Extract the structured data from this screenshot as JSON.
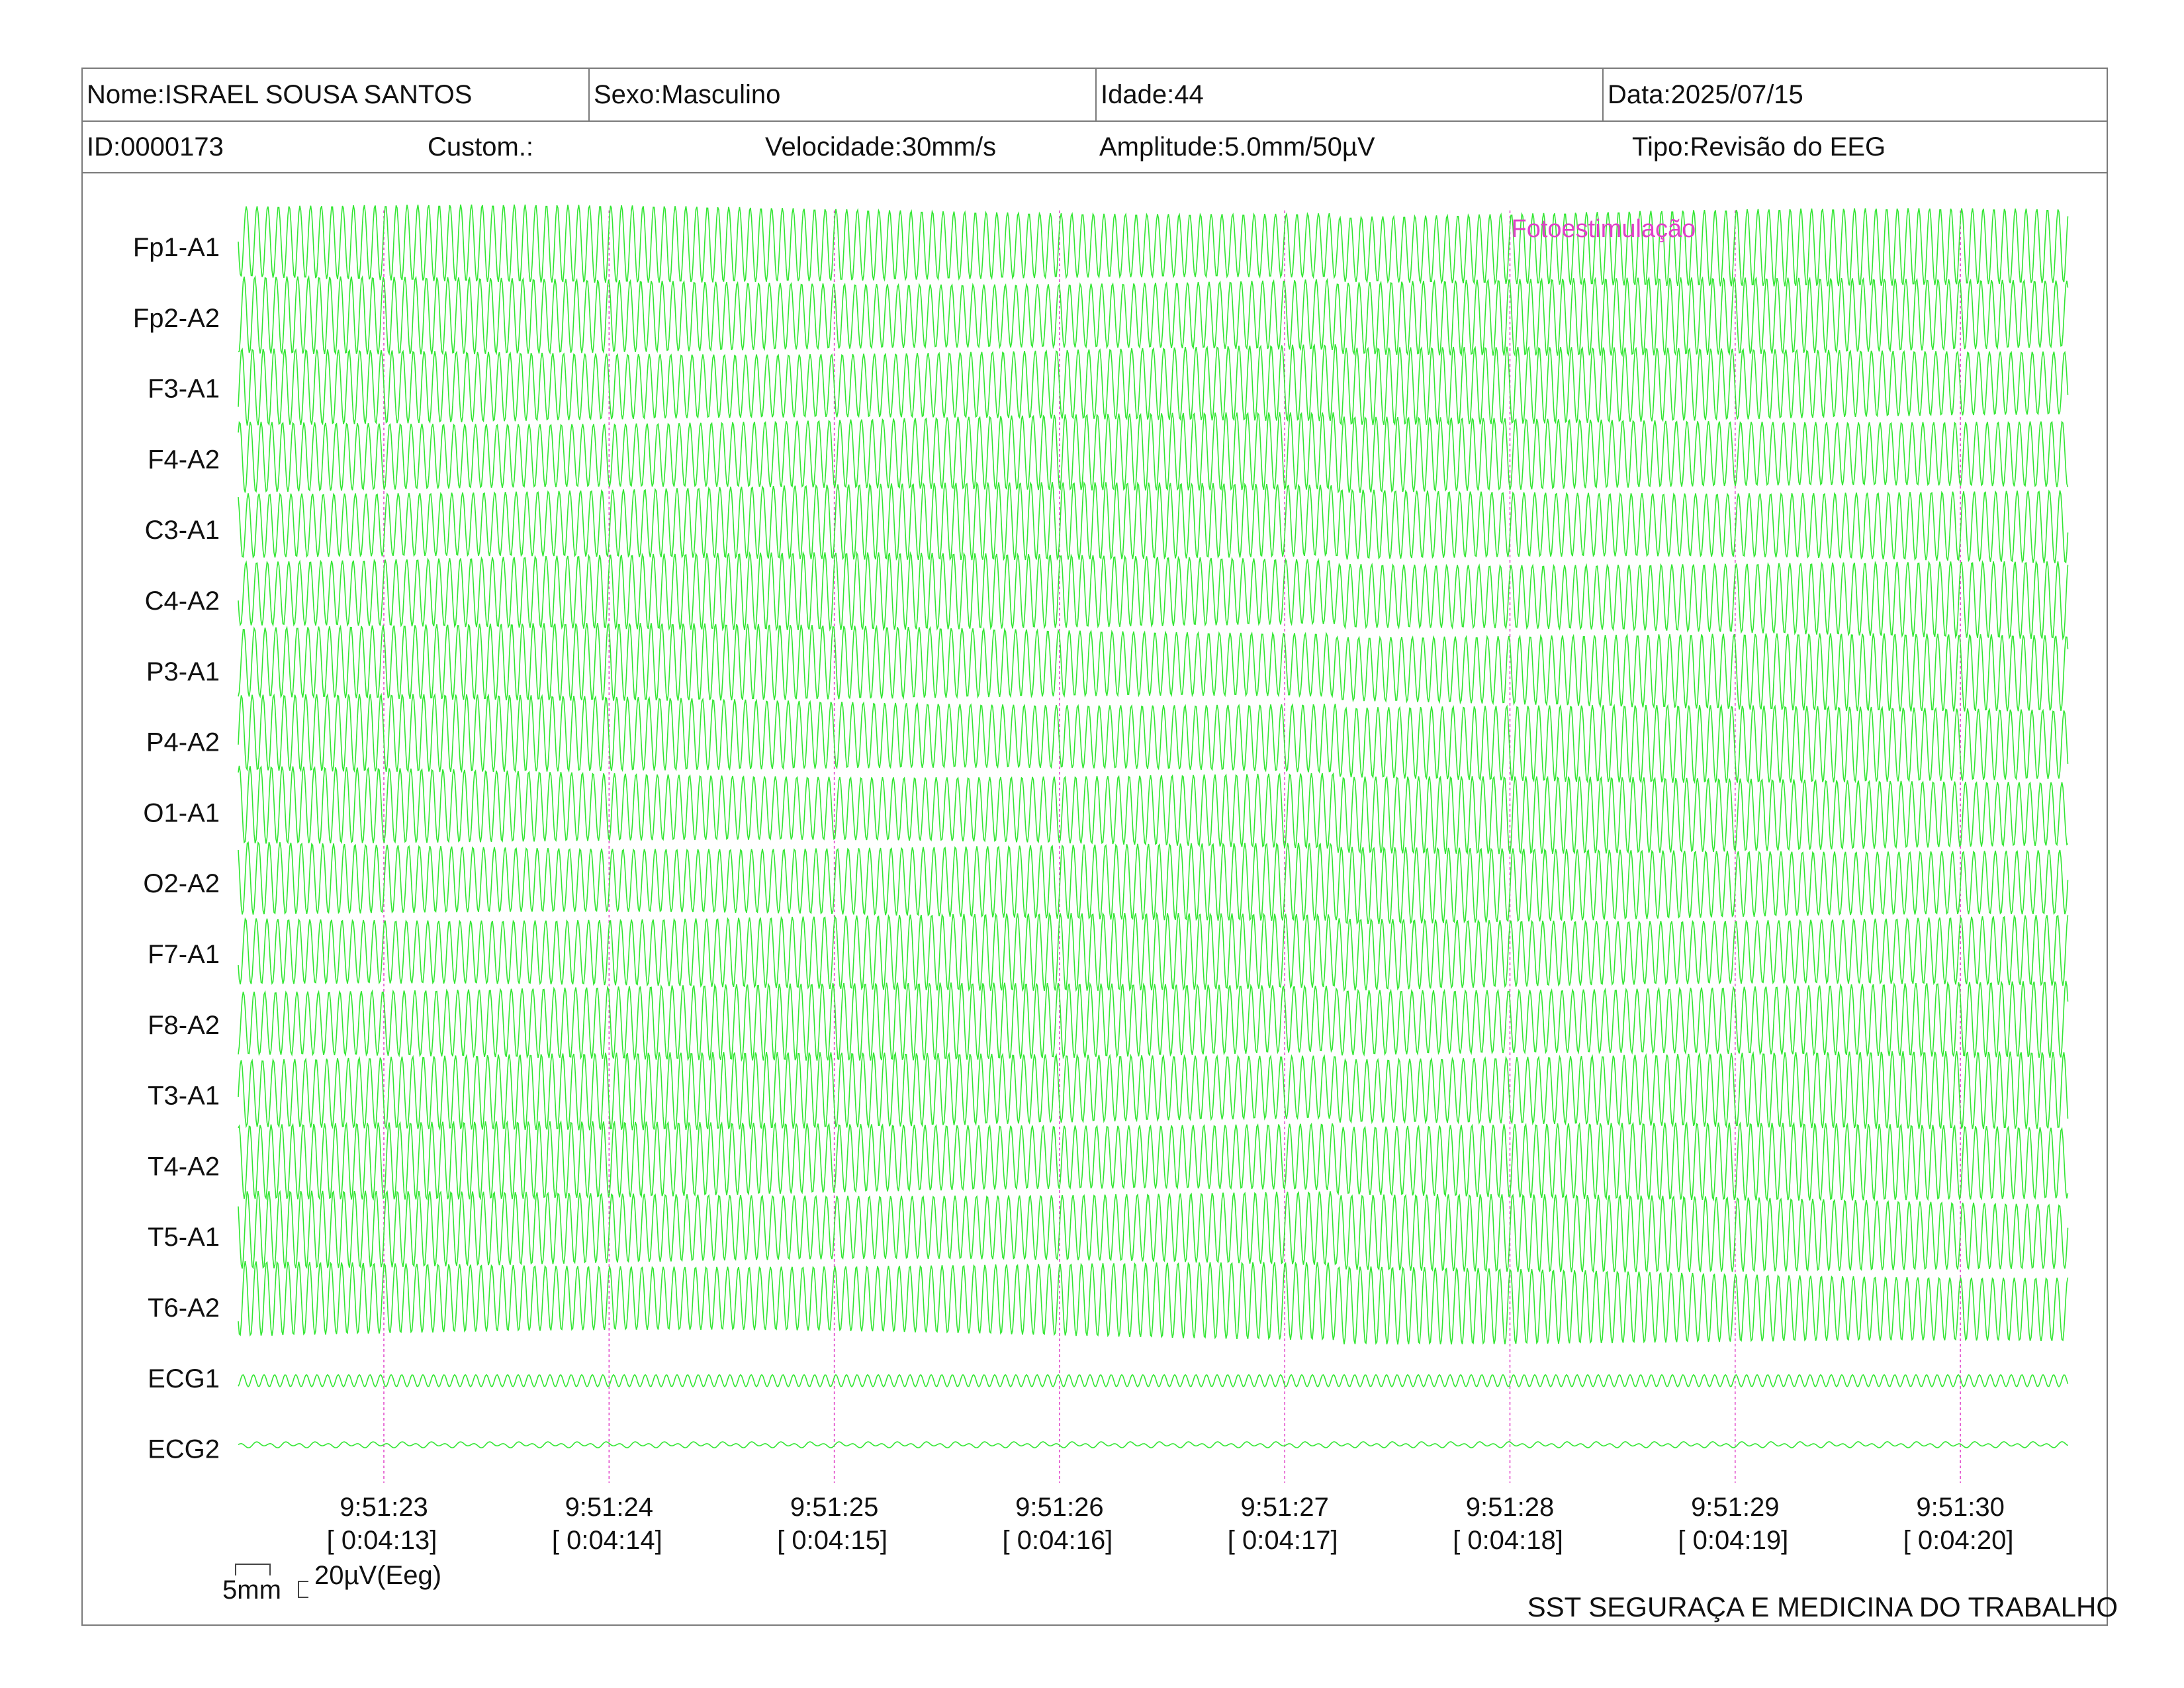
{
  "header": {
    "nome": "Nome:ISRAEL SOUSA SANTOS",
    "sexo": "Sexo:Masculino",
    "idade": "Idade:44",
    "data": "Data:2025/07/15",
    "id": "ID:0000173",
    "custom": "Custom.:",
    "velocidade": "Velocidade:30mm/s",
    "amplitude": "Amplitude:5.0mm/50µV",
    "tipo": "Tipo:Revisão do EEG"
  },
  "chart_data": {
    "type": "line",
    "title": "",
    "xlabel": "",
    "ylabel": "",
    "channels": [
      "Fp1-A1",
      "Fp2-A2",
      "F3-A1",
      "F4-A2",
      "C3-A1",
      "C4-A2",
      "P3-A1",
      "P4-A2",
      "O1-A1",
      "O2-A2",
      "F7-A1",
      "F8-A2",
      "T3-A1",
      "T4-A2",
      "T5-A1",
      "T6-A2",
      "ECG1",
      "ECG2"
    ],
    "time_ticks": [
      {
        "clock": "9:51:23",
        "elapsed": "[ 0:04:13]"
      },
      {
        "clock": "9:51:24",
        "elapsed": "[ 0:04:14]"
      },
      {
        "clock": "9:51:25",
        "elapsed": "[ 0:04:15]"
      },
      {
        "clock": "9:51:26",
        "elapsed": "[ 0:04:16]"
      },
      {
        "clock": "9:51:27",
        "elapsed": "[ 0:04:17]"
      },
      {
        "clock": "9:51:28",
        "elapsed": "[ 0:04:18]"
      },
      {
        "clock": "9:51:29",
        "elapsed": "[ 0:04:19]"
      },
      {
        "clock": "9:51:30",
        "elapsed": "[ 0:04:20]"
      }
    ],
    "annotations": [
      {
        "text": "Fotoestimulação",
        "time": "9:51:28"
      }
    ],
    "trace_color": "#33e633",
    "marker_color": "#e040c8",
    "grid": false
  },
  "scale": {
    "time_label": "5mm",
    "amp_label": "20µV(Eeg)"
  },
  "footer": {
    "organization": "SST SEGURAÇA E MEDICINA DO TRABALHO"
  }
}
